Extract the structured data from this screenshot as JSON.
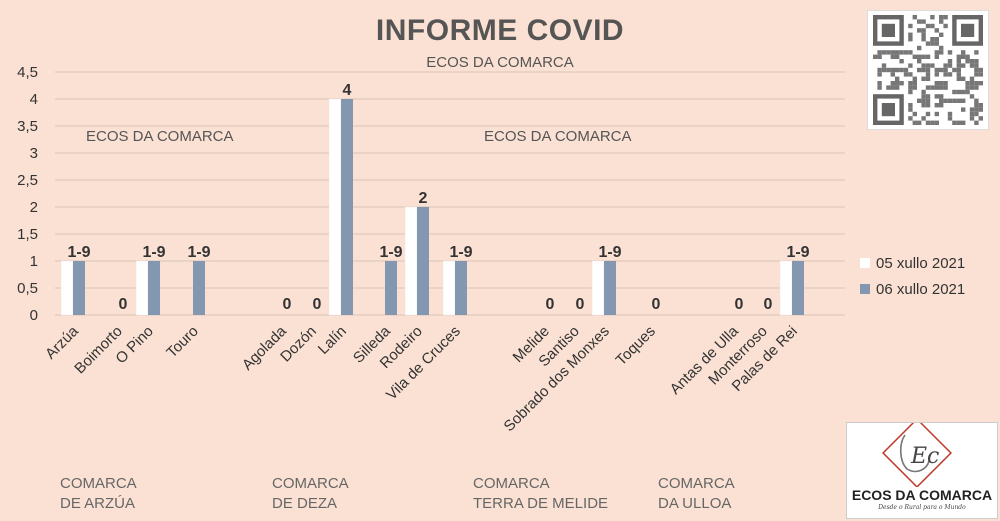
{
  "header": {
    "title": "INFORME COVID",
    "subtitle": "ECOS DA COMARCA",
    "watermark_left": "ECOS DA COMARCA",
    "watermark_right": "ECOS DA COMARCA"
  },
  "chart_data": {
    "type": "bar",
    "categories": [
      "Arzúa",
      "Boimorto",
      "O Pino",
      "Touro",
      "Agolada",
      "Dozón",
      "Lalín",
      "Silleda",
      "Rodeiro",
      "Vila de Cruces",
      "Melide",
      "Santiso",
      "Sobrado dos Monxes",
      "Toques",
      "Antas de Ulla",
      "Monterroso",
      "Palas de Rei"
    ],
    "series": [
      {
        "name": "05 xullo 2021",
        "color": "#ffffff",
        "values": [
          1,
          null,
          1,
          null,
          null,
          null,
          4,
          null,
          2,
          1,
          null,
          null,
          1,
          null,
          null,
          null,
          1
        ]
      },
      {
        "name": "06 xullo 2021",
        "color": "#8497b0",
        "values": [
          1,
          0,
          1,
          1,
          0,
          0,
          4,
          1,
          2,
          1,
          0,
          0,
          1,
          0,
          0,
          0,
          1
        ]
      }
    ],
    "data_labels": [
      "1-9",
      "0",
      "1-9",
      "1-9",
      "0",
      "0",
      "4",
      "1-9",
      "2",
      "1-9",
      "0",
      "0",
      "1-9",
      "0",
      "0",
      "0",
      "1-9"
    ],
    "y_ticks": [
      "0",
      "0,5",
      "1",
      "1,5",
      "2",
      "2,5",
      "3",
      "3,5",
      "4",
      "4,5"
    ],
    "ylim": [
      0,
      4.5
    ],
    "grid": true,
    "legend_position": "right"
  },
  "comarcas": [
    {
      "line1": "COMARCA",
      "line2": "DE ARZÚA"
    },
    {
      "line1": "COMARCA",
      "line2": "DE DEZA"
    },
    {
      "line1": "COMARCA",
      "line2": "TERRA DE MELIDE"
    },
    {
      "line1": "COMARCA",
      "line2": "DA ULLOA"
    }
  ],
  "logo": {
    "name": "ECOS DA COMARCA",
    "tagline": "Desde o Rural para o Mundo",
    "mark": "Ec"
  }
}
